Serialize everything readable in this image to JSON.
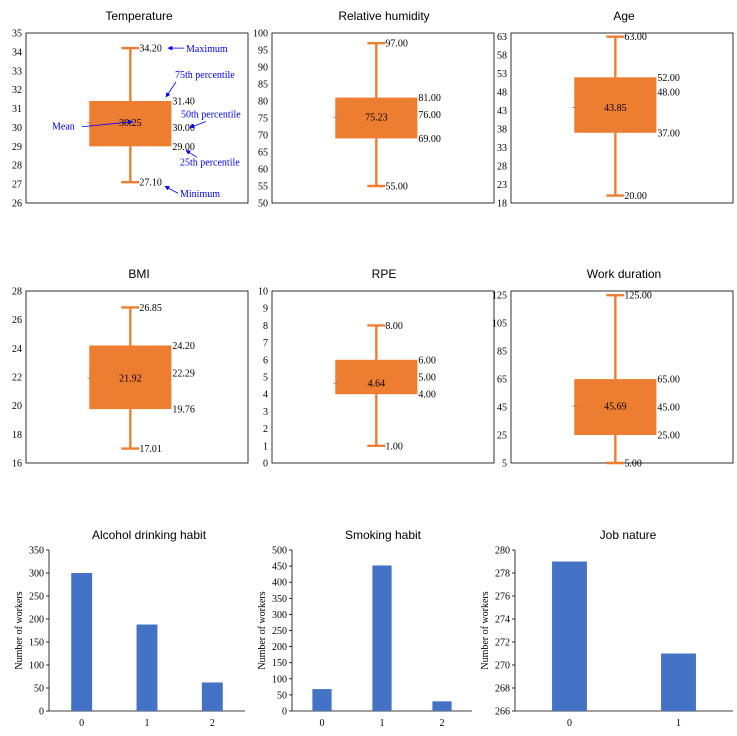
{
  "colors": {
    "box": "#ED7D31",
    "bar": "#4472C4",
    "annotation": "#0000FF",
    "axis": "#000000"
  },
  "chart_data": [
    {
      "type": "box",
      "title": "Temperature",
      "ylim": [
        26,
        35
      ],
      "yticks": [
        "26",
        "27",
        "28",
        "29",
        "30",
        "31",
        "32",
        "33",
        "34",
        "35"
      ],
      "stats": {
        "min": 27.1,
        "q1": 29.0,
        "median": 30.0,
        "mean": 30.25,
        "q3": 31.4,
        "max": 34.2
      },
      "labels": {
        "min": "27.10",
        "q1": "29.00",
        "median": "30.00",
        "mean": "30.25",
        "q3": "31.40",
        "max": "34.20"
      },
      "annotations": [
        {
          "text": "Maximum",
          "target": "max"
        },
        {
          "text": "75th percentile",
          "target": "q3"
        },
        {
          "text": "50th percentile",
          "target": "median"
        },
        {
          "text": "Mean",
          "target": "mean"
        },
        {
          "text": "25th percentile",
          "target": "q1"
        },
        {
          "text": "Minimum",
          "target": "min"
        }
      ]
    },
    {
      "type": "box",
      "title": "Relative humidity",
      "ylim": [
        50,
        100
      ],
      "yticks": [
        "50",
        "55",
        "60",
        "65",
        "70",
        "75",
        "80",
        "85",
        "90",
        "95",
        "100"
      ],
      "stats": {
        "min": 55,
        "q1": 69,
        "median": 76,
        "mean": 75.23,
        "q3": 81,
        "max": 97
      },
      "labels": {
        "min": "55.00",
        "q1": "69.00",
        "median": "76.00",
        "mean": "75.23",
        "q3": "81.00",
        "max": "97.00"
      }
    },
    {
      "type": "box",
      "title": "Age",
      "ylim": [
        18,
        64
      ],
      "yticks": [
        "18",
        "23",
        "28",
        "33",
        "38",
        "43",
        "48",
        "53",
        "58",
        "63"
      ],
      "stats": {
        "min": 20,
        "q1": 37,
        "median": 48,
        "mean": 43.85,
        "q3": 52,
        "max": 63
      },
      "labels": {
        "min": "20.00",
        "q1": "37.00",
        "median": "48.00",
        "mean": "43.85",
        "q3": "52.00",
        "max": "63.00"
      }
    },
    {
      "type": "box",
      "title": "BMI",
      "ylim": [
        16,
        28
      ],
      "yticks": [
        "16",
        "18",
        "20",
        "22",
        "24",
        "26",
        "28"
      ],
      "stats": {
        "min": 17.01,
        "q1": 19.76,
        "median": 22.29,
        "mean": 21.92,
        "q3": 24.2,
        "max": 26.85
      },
      "labels": {
        "min": "17.01",
        "q1": "19.76",
        "median": "22.29",
        "mean": "21.92",
        "q3": "24.20",
        "max": "26.85"
      }
    },
    {
      "type": "box",
      "title": "RPE",
      "ylim": [
        0,
        10
      ],
      "yticks": [
        "0",
        "1",
        "2",
        "3",
        "4",
        "5",
        "6",
        "7",
        "8",
        "9",
        "10"
      ],
      "stats": {
        "min": 1,
        "q1": 4,
        "median": 5,
        "mean": 4.64,
        "q3": 6,
        "max": 8
      },
      "labels": {
        "min": "1.00",
        "q1": "4.00",
        "median": "5.00",
        "mean": "4.64",
        "q3": "6.00",
        "max": "8.00"
      }
    },
    {
      "type": "box",
      "title": "Work duration",
      "ylim": [
        5,
        128
      ],
      "yticks": [
        "5",
        "25",
        "45",
        "65",
        "85",
        "105",
        "125"
      ],
      "stats": {
        "min": 5,
        "q1": 25,
        "median": 45,
        "mean": 45.69,
        "q3": 65,
        "max": 125
      },
      "labels": {
        "min": "5.00",
        "q1": "25.00",
        "median": "45.00",
        "mean": "45.69",
        "q3": "65.00",
        "max": "125.00"
      }
    },
    {
      "type": "bar",
      "title": "Alcohol drinking habit",
      "ylabel": "Number of workers",
      "ylim": [
        0,
        350
      ],
      "yticks": [
        "0",
        "50",
        "100",
        "150",
        "200",
        "250",
        "300",
        "350"
      ],
      "categories": [
        "0",
        "1",
        "2"
      ],
      "values": [
        300,
        188,
        62
      ]
    },
    {
      "type": "bar",
      "title": "Smoking habit",
      "ylabel": "Number of workers",
      "ylim": [
        0,
        500
      ],
      "yticks": [
        "0",
        "50",
        "100",
        "150",
        "200",
        "250",
        "300",
        "350",
        "400",
        "450",
        "500"
      ],
      "categories": [
        "0",
        "1",
        "2"
      ],
      "values": [
        68,
        452,
        30
      ]
    },
    {
      "type": "bar",
      "title": "Job nature",
      "ylabel": "Number of workers",
      "ylim": [
        266,
        280
      ],
      "yticks": [
        "266",
        "268",
        "270",
        "272",
        "274",
        "276",
        "278",
        "280"
      ],
      "categories": [
        "0",
        "1"
      ],
      "values": [
        279,
        271
      ]
    }
  ]
}
